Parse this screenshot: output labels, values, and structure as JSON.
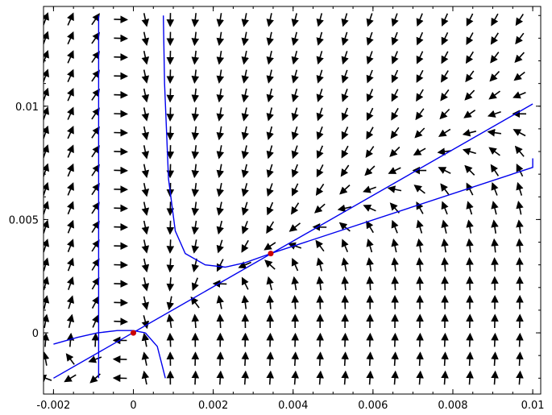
{
  "chart_data": {
    "type": "scatter",
    "title": "",
    "xlabel": "",
    "ylabel": "",
    "xlim": [
      -0.00225,
      0.0102
    ],
    "ylim": [
      -0.0027,
      0.0144
    ],
    "xticks": [
      {
        "value": -0.002,
        "label": "-0.002"
      },
      {
        "value": 0,
        "label": "0"
      },
      {
        "value": 0.002,
        "label": "0.002"
      },
      {
        "value": 0.004,
        "label": "0.004"
      },
      {
        "value": 0.006,
        "label": "0.006"
      },
      {
        "value": 0.008,
        "label": "0.008"
      },
      {
        "value": 0.01,
        "label": "0.01"
      }
    ],
    "yticks": [
      {
        "value": 0,
        "label": "0"
      },
      {
        "value": 0.005,
        "label": "0.005"
      },
      {
        "value": 0.01,
        "label": "0.01"
      }
    ],
    "grid": false,
    "vector_field": {
      "x_start": -0.0022,
      "x_step": 0.000625,
      "x_count": 20,
      "y_start": -0.002,
      "y_step": 0.000833,
      "y_count": 20,
      "color": "#000000"
    },
    "equilibria": [
      {
        "x": 0,
        "y": 0
      },
      {
        "x": 0.00344,
        "y": 0.0035
      }
    ],
    "equilibrium_color": "#cc0000",
    "curve_color": "#0000ee",
    "curves": [
      {
        "name": "",
        "points": [
          [
            -0.00087,
            0.014
          ],
          [
            -0.00087,
            -0.002
          ]
        ]
      },
      {
        "name": "",
        "points": [
          [
            -0.002,
            -0.002
          ],
          [
            0.01,
            0.0101
          ]
        ]
      },
      {
        "name": "",
        "points": [
          [
            0.00344,
            0.0035
          ],
          [
            0.01,
            0.0073
          ],
          [
            0.01,
            0.0077
          ]
        ]
      },
      {
        "name": "",
        "points": [
          [
            0.00075,
            0.014
          ],
          [
            0.00078,
            0.011
          ],
          [
            0.00088,
            0.0068
          ],
          [
            0.00105,
            0.0045
          ],
          [
            0.0013,
            0.0035
          ],
          [
            0.0018,
            0.003
          ],
          [
            0.0023,
            0.0029
          ],
          [
            0.0028,
            0.0031
          ],
          [
            0.00344,
            0.0035
          ]
        ]
      },
      {
        "name": "",
        "points": [
          [
            -0.002,
            -0.0005
          ],
          [
            -0.0014,
            -0.0002
          ],
          [
            -0.0009,
            0.0
          ],
          [
            -0.0004,
            0.0001
          ],
          [
            0,
            0.0001
          ],
          [
            0.0003,
            0.0
          ]
        ]
      },
      {
        "name": "",
        "points": [
          [
            0.0003,
            0.0
          ],
          [
            0.0006,
            -0.0006
          ],
          [
            0.0007,
            -0.0013
          ],
          [
            0.0008,
            -0.002
          ]
        ]
      }
    ]
  }
}
